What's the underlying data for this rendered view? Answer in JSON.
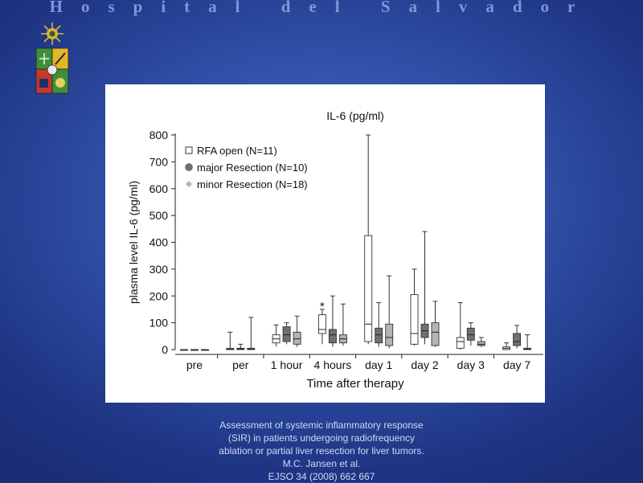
{
  "header": {
    "title": "Hospital del Salvador"
  },
  "caption": {
    "lines": [
      "Assessment of systemic inflammatory response",
      "(SIR) in patients undergoing radiofrequency",
      "ablation or partial liver resection for liver tumors.",
      "M.C. Jansen et al.",
      "EJSO 34 (2008) 662 667"
    ]
  },
  "colors": {
    "background": "#2f4fa6",
    "header_text": "#7d98d8",
    "caption_text": "#cfd9f5",
    "rfa_fill": "#ffffff",
    "major_fill": "#707070",
    "minor_fill": "#b4b4b4"
  },
  "chart_data": {
    "type": "box",
    "title": "IL-6 (pg/ml)",
    "xlabel": "Time after therapy",
    "ylabel": "plasma level IL-6 (pg/ml)",
    "ylim": [
      0,
      800
    ],
    "yticks": [
      0,
      100,
      200,
      300,
      400,
      500,
      600,
      700,
      800
    ],
    "categories": [
      "pre",
      "per",
      "1 hour",
      "4 hours",
      "day 1",
      "day 2",
      "day 3",
      "day 7"
    ],
    "legend_position": "top-left",
    "series": [
      {
        "name": "RFA open (N=11)",
        "marker": "square",
        "fill": "#ffffff",
        "boxes": [
          {
            "min": 0,
            "q1": 0,
            "median": 0,
            "q3": 0,
            "max": 0
          },
          {
            "min": 0,
            "q1": 0,
            "median": 2,
            "q3": 5,
            "max": 65
          },
          {
            "min": 12,
            "q1": 25,
            "median": 40,
            "q3": 55,
            "max": 92
          },
          {
            "min": 20,
            "q1": 60,
            "median": 75,
            "q3": 130,
            "max": 150
          },
          {
            "min": 20,
            "q1": 30,
            "median": 95,
            "q3": 425,
            "max": 800
          },
          {
            "min": 15,
            "q1": 20,
            "median": 60,
            "q3": 205,
            "max": 300
          },
          {
            "min": 0,
            "q1": 5,
            "median": 30,
            "q3": 45,
            "max": 175
          },
          {
            "min": 0,
            "q1": 0,
            "median": 5,
            "q3": 10,
            "max": 25
          }
        ]
      },
      {
        "name": "major Resection (N=10)",
        "marker": "circle",
        "fill": "#707070",
        "boxes": [
          {
            "min": 0,
            "q1": 0,
            "median": 0,
            "q3": 0,
            "max": 0
          },
          {
            "min": 0,
            "q1": 0,
            "median": 2,
            "q3": 5,
            "max": 20
          },
          {
            "min": 20,
            "q1": 30,
            "median": 55,
            "q3": 85,
            "max": 100
          },
          {
            "min": 10,
            "q1": 25,
            "median": 55,
            "q3": 75,
            "max": 200
          },
          {
            "min": 10,
            "q1": 25,
            "median": 55,
            "q3": 80,
            "max": 175
          },
          {
            "min": 20,
            "q1": 45,
            "median": 70,
            "q3": 95,
            "max": 440
          },
          {
            "min": 15,
            "q1": 35,
            "median": 55,
            "q3": 80,
            "max": 100
          },
          {
            "min": 5,
            "q1": 15,
            "median": 30,
            "q3": 60,
            "max": 90
          }
        ]
      },
      {
        "name": "minor Resection (N=18)",
        "marker": "diamond",
        "fill": "#b4b4b4",
        "boxes": [
          {
            "min": 0,
            "q1": 0,
            "median": 0,
            "q3": 0,
            "max": 0
          },
          {
            "min": 0,
            "q1": 0,
            "median": 2,
            "q3": 5,
            "max": 120
          },
          {
            "min": 10,
            "q1": 20,
            "median": 40,
            "q3": 65,
            "max": 125
          },
          {
            "min": 15,
            "q1": 25,
            "median": 40,
            "q3": 55,
            "max": 170
          },
          {
            "min": 5,
            "q1": 15,
            "median": 45,
            "q3": 95,
            "max": 275
          },
          {
            "min": 10,
            "q1": 15,
            "median": 65,
            "q3": 100,
            "max": 180
          },
          {
            "min": 10,
            "q1": 15,
            "median": 20,
            "q3": 30,
            "max": 45
          },
          {
            "min": 0,
            "q1": 0,
            "median": 2,
            "q3": 5,
            "max": 55
          }
        ]
      }
    ],
    "annotations": [
      {
        "text": "*",
        "category": "4 hours",
        "series": "RFA open (N=11)",
        "y": 165
      }
    ]
  }
}
